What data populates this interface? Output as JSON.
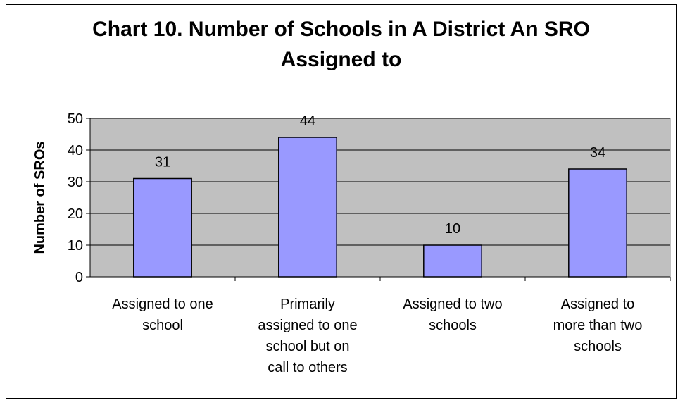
{
  "chart_data": {
    "type": "bar",
    "title": "Chart 10. Number of Schools in A District An SRO\nAssigned to",
    "xlabel": "",
    "ylabel": "Number of SROs",
    "ylim": [
      0,
      50
    ],
    "yticks": [
      0,
      10,
      20,
      30,
      40,
      50
    ],
    "categories": [
      "Assigned to one school",
      "Primarily assigned to one school but on call to others",
      "Assigned to two schools",
      "Assigned to more than two schools"
    ],
    "category_lines": [
      [
        "Assigned to one",
        "school"
      ],
      [
        "Primarily",
        "assigned to one",
        "school but on",
        "call to others"
      ],
      [
        "Assigned to two",
        "schools"
      ],
      [
        "Assigned to",
        "more than two",
        "schools"
      ]
    ],
    "values": [
      31,
      44,
      10,
      34
    ],
    "data_labels": [
      "31",
      "44",
      "10",
      "34"
    ],
    "grid": true,
    "legend": "none",
    "colors": {
      "bar_fill": "#9999ff",
      "bar_stroke": "#000000",
      "plot_bg": "#c0c0c0",
      "gridline": "#000000"
    }
  }
}
